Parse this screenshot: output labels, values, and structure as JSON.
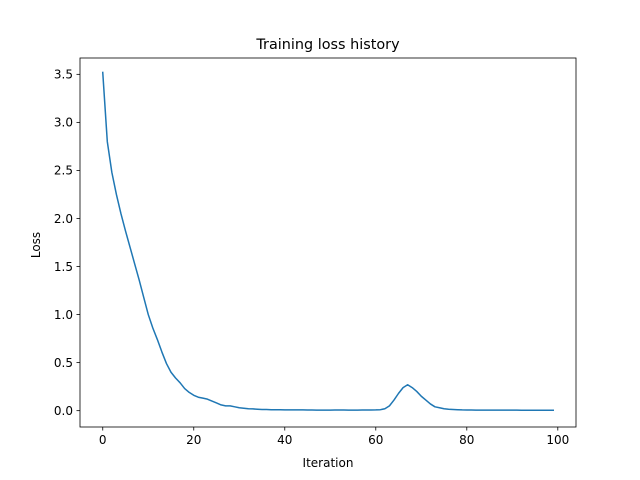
{
  "chart_data": {
    "type": "line",
    "title": "Training loss history",
    "xlabel": "Iteration",
    "ylabel": "Loss",
    "xlim": [
      -5,
      104
    ],
    "ylim": [
      -0.17,
      3.67
    ],
    "xticks": [
      0,
      20,
      40,
      60,
      80,
      100
    ],
    "yticks": [
      0.0,
      0.5,
      1.0,
      1.5,
      2.0,
      2.5,
      3.0,
      3.5
    ],
    "xtick_labels": [
      "0",
      "20",
      "40",
      "60",
      "80",
      "100"
    ],
    "ytick_labels": [
      "0.0",
      "0.5",
      "1.0",
      "1.5",
      "2.0",
      "2.5",
      "3.0",
      "3.5"
    ],
    "grid": false,
    "line_color": "#1f77b4",
    "series": [
      {
        "x": [
          0,
          1,
          2,
          3,
          4,
          5,
          6,
          7,
          8,
          9,
          10,
          11,
          12,
          13,
          14,
          15,
          16,
          17,
          18,
          19,
          20,
          21,
          22,
          23,
          24,
          25,
          26,
          27,
          28,
          29,
          30,
          31,
          32,
          33,
          34,
          35,
          36,
          37,
          38,
          39,
          40,
          41,
          42,
          43,
          44,
          45,
          46,
          47,
          48,
          49,
          50,
          51,
          52,
          53,
          54,
          55,
          56,
          57,
          58,
          59,
          60,
          61,
          62,
          63,
          64,
          65,
          66,
          67,
          68,
          69,
          70,
          71,
          72,
          73,
          74,
          75,
          76,
          77,
          78,
          79,
          80,
          81,
          82,
          83,
          84,
          85,
          86,
          87,
          88,
          89,
          90,
          91,
          92,
          93,
          94,
          95,
          96,
          97,
          98,
          99
        ],
        "y": [
          3.52,
          2.8,
          2.48,
          2.25,
          2.05,
          1.87,
          1.7,
          1.53,
          1.36,
          1.18,
          1.0,
          0.86,
          0.74,
          0.61,
          0.49,
          0.4,
          0.34,
          0.29,
          0.23,
          0.19,
          0.16,
          0.14,
          0.13,
          0.12,
          0.1,
          0.08,
          0.06,
          0.05,
          0.05,
          0.04,
          0.03,
          0.025,
          0.02,
          0.018,
          0.015,
          0.012,
          0.012,
          0.01,
          0.01,
          0.009,
          0.008,
          0.008,
          0.008,
          0.008,
          0.008,
          0.007,
          0.007,
          0.006,
          0.006,
          0.006,
          0.006,
          0.007,
          0.007,
          0.007,
          0.006,
          0.006,
          0.006,
          0.007,
          0.007,
          0.007,
          0.008,
          0.01,
          0.02,
          0.05,
          0.11,
          0.18,
          0.24,
          0.27,
          0.24,
          0.2,
          0.15,
          0.11,
          0.07,
          0.04,
          0.03,
          0.02,
          0.015,
          0.012,
          0.01,
          0.008,
          0.007,
          0.007,
          0.006,
          0.006,
          0.005,
          0.005,
          0.005,
          0.005,
          0.005,
          0.005,
          0.005,
          0.005,
          0.004,
          0.004,
          0.004,
          0.004,
          0.004,
          0.004,
          0.004,
          0.004
        ]
      }
    ]
  }
}
